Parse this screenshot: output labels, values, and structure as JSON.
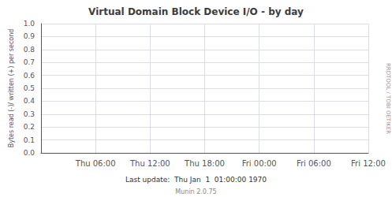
{
  "chart_data": {
    "type": "line",
    "title": "Virtual Domain Block Device I/O - by day",
    "ylabel": "Bytes read (-)/ written (+) per second",
    "xlabel": "Last update:  Thu Jan  1  01:00:00 1970",
    "annotations": [
      "Munin 2.0.75",
      "RRDTOOL / TOBI OETIKER"
    ],
    "categories": [
      null,
      "Thu 06:00",
      "Thu 12:00",
      "Thu 18:00",
      "Fri 00:00",
      "Fri 06:00",
      "Fri 12:00"
    ],
    "series": [],
    "ylim": [
      0,
      1
    ],
    "yticks": [
      {
        "value": 0,
        "label": "0.0"
      },
      0.1,
      0.2,
      0.3,
      0.4,
      0.5,
      0.6,
      0.7,
      0.8,
      0.9,
      {
        "value": 1,
        "label": "1.0"
      }
    ],
    "grid": true
  }
}
